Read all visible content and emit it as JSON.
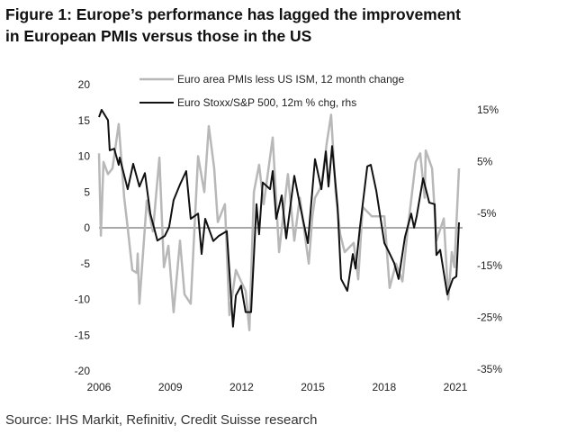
{
  "chart_data": {
    "type": "line",
    "title": "Figure 1: Europe’s performance has lagged the improvement in European PMIs versus those in the US",
    "title_lines": [
      "Figure 1: Europe’s performance has lagged the improvement",
      "in European PMIs versus those in the US"
    ],
    "source": "Source: IHS Markit, Refinitiv, Credit Suisse research",
    "x_ticks": [
      "2006",
      "2009",
      "2012",
      "2015",
      "2018",
      "2021"
    ],
    "x_tick_values": [
      2006,
      2009,
      2012,
      2015,
      2018,
      2021
    ],
    "xlim": [
      2006,
      2021.3
    ],
    "left_axis": {
      "ylim": [
        -20,
        20
      ],
      "ticks": [
        "20",
        "15",
        "10",
        "5",
        "0",
        "-5",
        "-10",
        "-15",
        "-20"
      ],
      "tick_values": [
        20,
        15,
        10,
        5,
        0,
        -5,
        -10,
        -15,
        -20
      ]
    },
    "right_axis": {
      "ylim": [
        -35,
        15
      ],
      "ticks": [
        "15%",
        "5%",
        "-5%",
        "-15%",
        "-25%",
        "-35%"
      ],
      "tick_values": [
        15,
        5,
        -5,
        -15,
        -25,
        -35
      ]
    },
    "legend_position": "top",
    "grid": false,
    "zero_line": true,
    "series": [
      {
        "name": "Euro area PMIs less US ISM, 12 month change",
        "axis": "left",
        "color": "#b8b8b8",
        "x": [
          2006.0,
          2006.08,
          2006.19,
          2006.38,
          2006.57,
          2006.83,
          2007.06,
          2007.21,
          2007.4,
          2007.59,
          2007.63,
          2007.7,
          2008.01,
          2008.27,
          2008.54,
          2008.73,
          2008.92,
          2009.14,
          2009.41,
          2009.6,
          2009.86,
          2010.17,
          2010.43,
          2010.62,
          2010.85,
          2011.0,
          2011.3,
          2011.49,
          2011.76,
          2011.98,
          2012.17,
          2012.33,
          2012.52,
          2012.74,
          2012.93,
          2013.31,
          2013.58,
          2013.95,
          2014.22,
          2014.45,
          2014.83,
          2014.98,
          2015.09,
          2015.36,
          2015.58,
          2015.77,
          2015.96,
          2016.15,
          2016.34,
          2016.72,
          2016.91,
          2017.1,
          2017.48,
          2018.01,
          2018.23,
          2018.5,
          2018.77,
          2019.0,
          2019.33,
          2019.52,
          2019.71,
          2019.75,
          2020.02,
          2020.2,
          2020.51,
          2020.7,
          2020.85,
          2020.96,
          2021.15
        ],
        "values": [
          10.4,
          -1.1,
          9.2,
          7.5,
          8.3,
          14.5,
          4.2,
          0,
          -5.9,
          -6.3,
          -3.6,
          -10.6,
          3.8,
          -0.5,
          9.8,
          -5.5,
          -2.5,
          -11.8,
          -1.8,
          -9.3,
          -10.6,
          10,
          5,
          14.2,
          8.3,
          0.8,
          3.3,
          -12.2,
          -5.9,
          -7.5,
          -8.8,
          -14.3,
          5,
          8.8,
          3.3,
          12.6,
          -3.4,
          7.5,
          -1.8,
          4.2,
          -5,
          1.6,
          4.2,
          5.8,
          11.7,
          15.8,
          5,
          -0.9,
          -3.4,
          -2.1,
          -7.2,
          2.9,
          1.6,
          1.6,
          -8.4,
          -5,
          -7.5,
          0,
          9.2,
          10.4,
          4.2,
          10.8,
          8.3,
          -1.8,
          1.3,
          -10,
          -3.4,
          -5.5,
          8.3
        ]
      },
      {
        "name": "Euro Stoxx/S&P 500, 12m % chg, rhs",
        "axis": "right",
        "color": "#111111",
        "x": [
          2006.0,
          2006.11,
          2006.38,
          2006.45,
          2006.64,
          2006.83,
          2006.87,
          2007.21,
          2007.44,
          2007.7,
          2007.93,
          2008.16,
          2008.46,
          2008.77,
          2008.95,
          2009.14,
          2009.41,
          2009.67,
          2009.86,
          2010.17,
          2010.32,
          2010.47,
          2010.81,
          2011.04,
          2011.38,
          2011.64,
          2011.76,
          2011.98,
          2012.17,
          2012.4,
          2012.63,
          2012.74,
          2012.89,
          2013.2,
          2013.31,
          2013.46,
          2013.69,
          2013.88,
          2014.22,
          2014.45,
          2014.79,
          2015.09,
          2015.36,
          2015.55,
          2015.66,
          2015.81,
          2016.04,
          2016.19,
          2016.45,
          2016.68,
          2016.8,
          2016.98,
          2017.29,
          2017.44,
          2017.67,
          2018.01,
          2018.2,
          2018.42,
          2018.61,
          2018.88,
          2019.14,
          2019.26,
          2019.37,
          2019.64,
          2019.9,
          2020.13,
          2020.2,
          2020.36,
          2020.66,
          2020.89,
          2021.04,
          2021.15
        ],
        "values": [
          13.6,
          15,
          13,
          7.2,
          7.5,
          4.4,
          5.8,
          -0.3,
          4.6,
          0.2,
          2.8,
          -5,
          -10.2,
          -9.3,
          -7.6,
          -2.4,
          0.6,
          3.2,
          -6,
          -5,
          -12.8,
          -6,
          -10.3,
          -9.3,
          -8.4,
          -26.8,
          -20.8,
          -18.9,
          -24,
          -24,
          -3.2,
          -9,
          1,
          -0.3,
          3.2,
          -6,
          -1.5,
          -9.8,
          2.3,
          -3.2,
          -10.7,
          5.5,
          -0.3,
          7,
          0.2,
          8,
          -3.7,
          -17.6,
          -19.9,
          -12.8,
          -15.6,
          -7.7,
          4.1,
          4.4,
          -0.6,
          -10.7,
          -12.4,
          -14.5,
          -17.6,
          -9.5,
          -5,
          -7.7,
          -5.5,
          1.8,
          -2.9,
          -3.2,
          -13,
          -12,
          -20.6,
          -17.6,
          -17.1,
          -6.7
        ]
      }
    ]
  }
}
